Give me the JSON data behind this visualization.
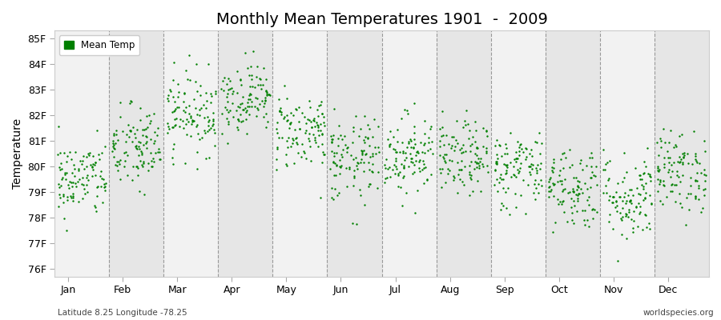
{
  "title": "Monthly Mean Temperatures 1901  -  2009",
  "ylabel": "Temperature",
  "xlabel_labels": [
    "Jan",
    "Feb",
    "Mar",
    "Apr",
    "May",
    "Jun",
    "Jul",
    "Aug",
    "Sep",
    "Oct",
    "Nov",
    "Dec"
  ],
  "ytick_labels": [
    "76F",
    "77F",
    "78F",
    "79F",
    "80F",
    "81F",
    "82F",
    "83F",
    "84F",
    "85F"
  ],
  "ytick_values": [
    76,
    77,
    78,
    79,
    80,
    81,
    82,
    83,
    84,
    85
  ],
  "ylim": [
    75.7,
    85.3
  ],
  "dot_color": "#008000",
  "legend_label": "Mean Temp",
  "subtitle_left": "Latitude 8.25 Longitude -78.25",
  "subtitle_right": "worldspecies.org",
  "bg_light": "#f2f2f2",
  "bg_dark": "#e6e6e6",
  "n_years": 109,
  "seed": 42,
  "monthly_means": [
    79.5,
    80.7,
    82.1,
    82.7,
    81.4,
    80.2,
    80.5,
    80.3,
    79.9,
    79.2,
    78.8,
    79.8
  ],
  "monthly_stds": [
    0.75,
    0.85,
    0.8,
    0.68,
    0.75,
    0.85,
    0.8,
    0.72,
    0.78,
    0.82,
    0.88,
    0.8
  ]
}
